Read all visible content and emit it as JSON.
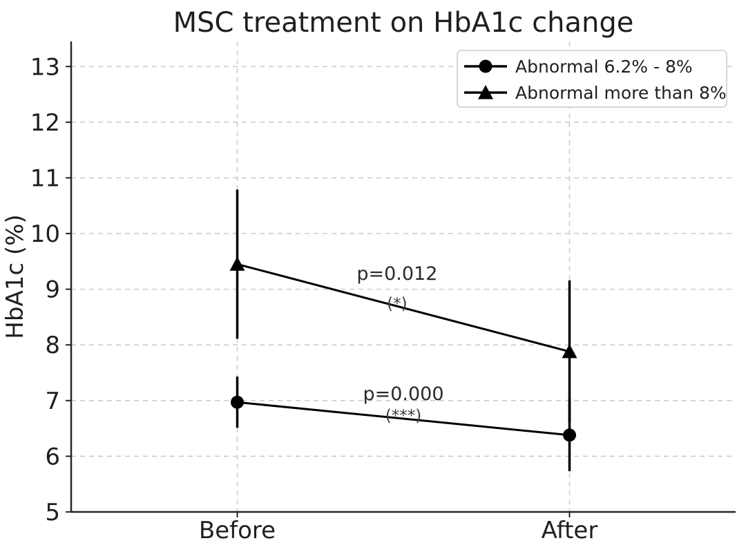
{
  "figure": {
    "title": "MSC treatment on HbA1c change"
  },
  "colors": {
    "background": "#ffffff",
    "text": "#1f1f1f",
    "spine": "#262626",
    "grid": "#cccccc",
    "series": "#000000",
    "annotation": "#2a2a2a",
    "annotation_sub": "#3d3d3d",
    "legend_border": "#cccccc",
    "legend_bg": "#ffffff"
  },
  "chart_data": {
    "type": "line",
    "title": "MSC treatment on HbA1c change",
    "xlabel": "",
    "ylabel": "HbA1c (%)",
    "categories": [
      "Before",
      "After"
    ],
    "ylim": [
      5,
      13.45
    ],
    "yticks": [
      5,
      6,
      7,
      8,
      9,
      10,
      11,
      12,
      13
    ],
    "grid": {
      "show": true,
      "style": "dashed",
      "axes": "both"
    },
    "legend_position": "upper right",
    "series": [
      {
        "name": "Abnormal 6.2% - 8%",
        "marker": "circle",
        "color": "#000000",
        "values": [
          6.97,
          6.38
        ],
        "errors": [
          0.46,
          0.65
        ]
      },
      {
        "name": "Abnormal more than 8%",
        "marker": "triangle",
        "color": "#000000",
        "values": [
          9.45,
          7.88
        ],
        "errors": [
          1.34,
          1.28
        ]
      }
    ],
    "annotations": [
      {
        "text": "p=0.012",
        "sub": "(*)",
        "x": 0.481,
        "y": 9.28,
        "sub_y": 8.76
      },
      {
        "text": "p=0.000",
        "sub": "(***)",
        "x": 0.5,
        "y": 7.12,
        "sub_y": 6.75
      }
    ]
  }
}
